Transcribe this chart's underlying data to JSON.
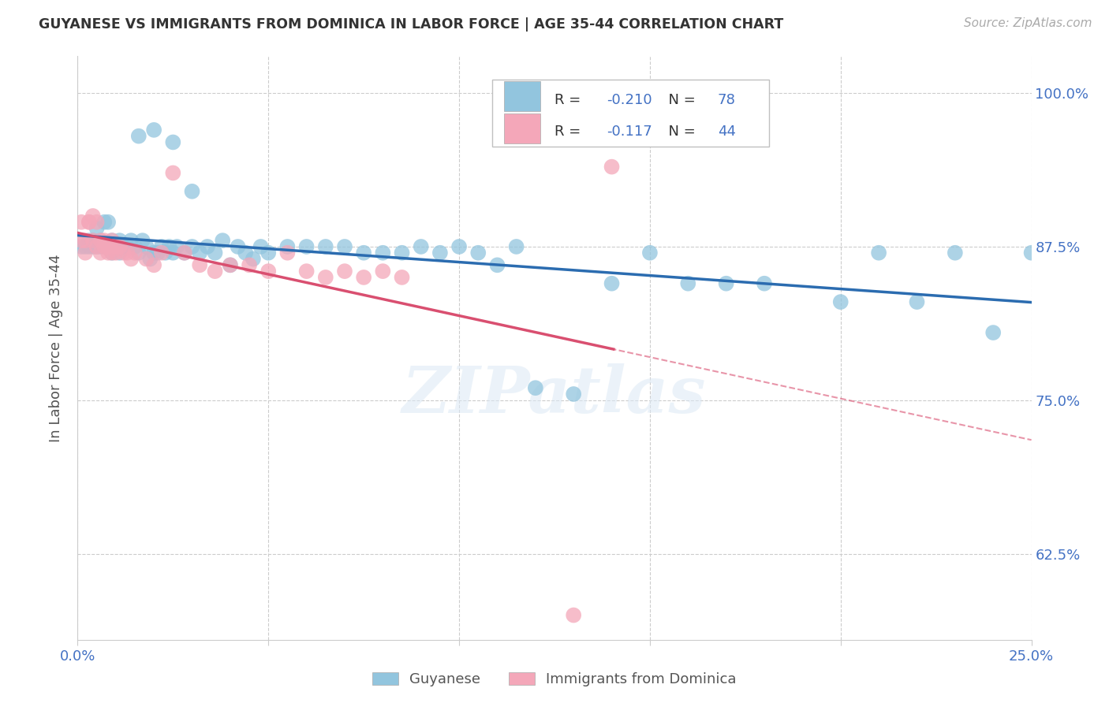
{
  "title": "GUYANESE VS IMMIGRANTS FROM DOMINICA IN LABOR FORCE | AGE 35-44 CORRELATION CHART",
  "source": "Source: ZipAtlas.com",
  "ylabel": "In Labor Force | Age 35-44",
  "xlim": [
    0.0,
    0.25
  ],
  "ylim": [
    0.555,
    1.03
  ],
  "xtick_positions": [
    0.0,
    0.05,
    0.1,
    0.15,
    0.2,
    0.25
  ],
  "xticklabels": [
    "0.0%",
    "",
    "",
    "",
    "",
    "25.0%"
  ],
  "ytick_positions": [
    0.625,
    0.75,
    0.875,
    1.0
  ],
  "ytick_labels": [
    "62.5%",
    "75.0%",
    "87.5%",
    "100.0%"
  ],
  "blue_label": "Guyanese",
  "pink_label": "Immigrants from Dominica",
  "blue_R": -0.21,
  "blue_N": 78,
  "pink_R": -0.117,
  "pink_N": 44,
  "blue_color": "#92c5de",
  "pink_color": "#f4a7b9",
  "blue_line_color": "#2b6cb0",
  "pink_line_color": "#d94f70",
  "watermark": "ZIPatlas",
  "grid_color": "#cccccc",
  "tick_color": "#4472c4",
  "background_color": "#ffffff",
  "blue_x": [
    0.001,
    0.002,
    0.003,
    0.003,
    0.004,
    0.004,
    0.005,
    0.005,
    0.006,
    0.006,
    0.007,
    0.007,
    0.008,
    0.008,
    0.009,
    0.009,
    0.01,
    0.01,
    0.011,
    0.011,
    0.012,
    0.012,
    0.013,
    0.014,
    0.015,
    0.016,
    0.017,
    0.018,
    0.019,
    0.02,
    0.021,
    0.022,
    0.023,
    0.024,
    0.025,
    0.026,
    0.028,
    0.03,
    0.032,
    0.034,
    0.036,
    0.038,
    0.04,
    0.042,
    0.044,
    0.046,
    0.048,
    0.05,
    0.055,
    0.06,
    0.065,
    0.07,
    0.075,
    0.08,
    0.085,
    0.09,
    0.095,
    0.1,
    0.105,
    0.11,
    0.115,
    0.12,
    0.13,
    0.14,
    0.15,
    0.16,
    0.17,
    0.18,
    0.2,
    0.21,
    0.22,
    0.23,
    0.24,
    0.25,
    0.016,
    0.02,
    0.025,
    0.03
  ],
  "blue_y": [
    0.875,
    0.875,
    0.875,
    0.88,
    0.875,
    0.88,
    0.875,
    0.89,
    0.875,
    0.88,
    0.875,
    0.895,
    0.875,
    0.895,
    0.87,
    0.88,
    0.875,
    0.875,
    0.87,
    0.88,
    0.875,
    0.875,
    0.875,
    0.88,
    0.875,
    0.87,
    0.88,
    0.875,
    0.865,
    0.87,
    0.87,
    0.875,
    0.87,
    0.875,
    0.87,
    0.875,
    0.87,
    0.875,
    0.87,
    0.875,
    0.87,
    0.88,
    0.86,
    0.875,
    0.87,
    0.865,
    0.875,
    0.87,
    0.875,
    0.875,
    0.875,
    0.875,
    0.87,
    0.87,
    0.87,
    0.875,
    0.87,
    0.875,
    0.87,
    0.86,
    0.875,
    0.76,
    0.755,
    0.845,
    0.87,
    0.845,
    0.845,
    0.845,
    0.83,
    0.87,
    0.83,
    0.87,
    0.805,
    0.87,
    0.965,
    0.97,
    0.96,
    0.92
  ],
  "pink_x": [
    0.001,
    0.001,
    0.002,
    0.002,
    0.003,
    0.003,
    0.004,
    0.004,
    0.005,
    0.005,
    0.006,
    0.006,
    0.007,
    0.007,
    0.008,
    0.008,
    0.009,
    0.009,
    0.01,
    0.01,
    0.011,
    0.012,
    0.013,
    0.014,
    0.015,
    0.018,
    0.02,
    0.022,
    0.025,
    0.028,
    0.032,
    0.036,
    0.04,
    0.045,
    0.05,
    0.055,
    0.06,
    0.065,
    0.07,
    0.075,
    0.08,
    0.085,
    0.13,
    0.14
  ],
  "pink_y": [
    0.88,
    0.895,
    0.87,
    0.88,
    0.895,
    0.895,
    0.88,
    0.9,
    0.875,
    0.895,
    0.88,
    0.87,
    0.88,
    0.875,
    0.87,
    0.875,
    0.87,
    0.88,
    0.875,
    0.87,
    0.875,
    0.87,
    0.87,
    0.865,
    0.87,
    0.865,
    0.86,
    0.87,
    0.935,
    0.87,
    0.86,
    0.855,
    0.86,
    0.86,
    0.855,
    0.87,
    0.855,
    0.85,
    0.855,
    0.85,
    0.855,
    0.85,
    0.575,
    0.94
  ]
}
